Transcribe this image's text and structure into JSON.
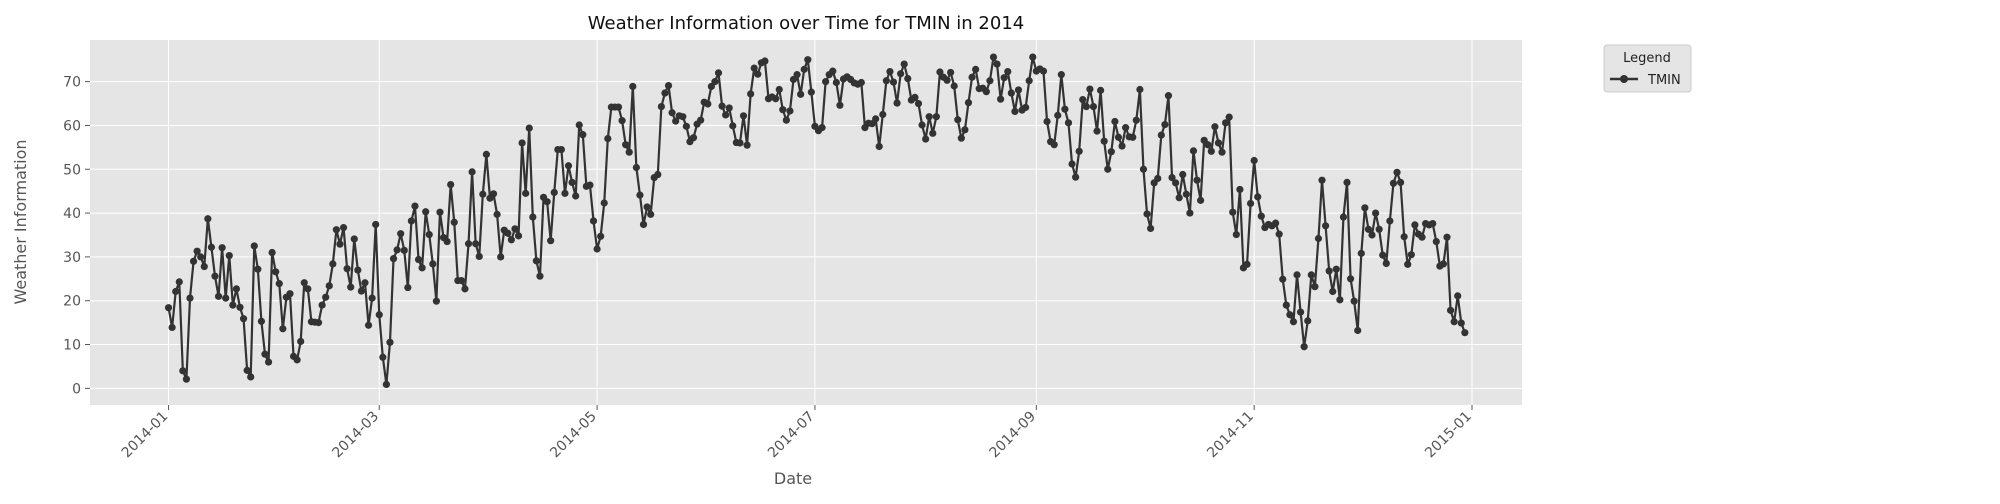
{
  "chart_data": {
    "type": "line",
    "title": "Weather Information over Time for TMIN in 2014",
    "xlabel": "Date",
    "ylabel": "Weather Information",
    "xlim": [
      "2013-12-10",
      "2015-01-15"
    ],
    "ylim": [
      -3.8,
      79.5
    ],
    "x_ticks": [
      "2014-01",
      "2014-03",
      "2014-05",
      "2014-07",
      "2014-09",
      "2014-11",
      "2015-01"
    ],
    "y_ticks": [
      0,
      10,
      20,
      30,
      40,
      50,
      60,
      70
    ],
    "grid": true,
    "legend": {
      "title": "Legend",
      "placement": "outside-top-right",
      "entries": [
        "TMIN"
      ]
    },
    "colors": {
      "background": "#e5e5e5",
      "line": "#333333",
      "grid": "#ffffff"
    },
    "start_date": "2014-01-01",
    "series": [
      {
        "name": "TMIN",
        "y": [
          18.4,
          13.9,
          22.1,
          24.3,
          4.0,
          2.1,
          20.6,
          29.0,
          31.3,
          30.0,
          27.8,
          38.7,
          32.2,
          25.6,
          21.0,
          32.1,
          20.6,
          30.3,
          19.0,
          22.7,
          18.5,
          15.9,
          4.1,
          2.6,
          32.5,
          27.2,
          15.3,
          7.8,
          6.0,
          31.0,
          26.6,
          23.9,
          13.6,
          20.8,
          21.6,
          7.3,
          6.5,
          10.7,
          24.1,
          22.7,
          15.2,
          15.1,
          15.0,
          19.0,
          20.8,
          23.4,
          28.4,
          36.2,
          32.9,
          36.7,
          27.3,
          23.1,
          34.1,
          27.0,
          22.2,
          24.1,
          14.4,
          20.6,
          37.4,
          16.8,
          7.1,
          0.9,
          10.5,
          29.6,
          31.6,
          35.3,
          31.5,
          23.0,
          38.2,
          41.6,
          29.4,
          27.5,
          40.3,
          35.1,
          28.4,
          19.9,
          40.2,
          34.4,
          33.5,
          46.5,
          37.9,
          24.6,
          24.6,
          22.7,
          33.0,
          49.4,
          33.0,
          30.1,
          44.3,
          53.4,
          43.4,
          44.4,
          39.7,
          30.0,
          36.1,
          35.4,
          33.9,
          36.4,
          34.8,
          56.0,
          44.5,
          59.4,
          39.1,
          29.1,
          25.6,
          43.6,
          42.6,
          33.7,
          44.7,
          54.5,
          54.5,
          44.5,
          50.8,
          47.0,
          43.9,
          60.1,
          57.9,
          46.1,
          46.4,
          38.2,
          31.8,
          34.7,
          42.3,
          57.0,
          64.2,
          64.2,
          64.2,
          61.1,
          55.6,
          53.9,
          68.9,
          50.4,
          44.1,
          37.4,
          41.4,
          39.7,
          48.1,
          48.8,
          64.3,
          67.4,
          69.1,
          62.9,
          61.0,
          62.2,
          62.0,
          59.8,
          56.3,
          57.2,
          60.3,
          61.2,
          65.3,
          64.9,
          68.9,
          70.0,
          72.0,
          64.4,
          62.4,
          64.0,
          59.9,
          56.1,
          56.0,
          62.2,
          55.5,
          67.2,
          73.1,
          71.7,
          74.3,
          74.7,
          66.1,
          66.5,
          66.1,
          68.2,
          63.6,
          61.2,
          63.3,
          70.5,
          71.6,
          67.1,
          72.8,
          75.0,
          67.6,
          59.8,
          58.8,
          59.5,
          70.0,
          71.6,
          72.4,
          69.8,
          64.6,
          70.6,
          71.1,
          70.5,
          69.7,
          69.4,
          69.8,
          59.5,
          60.5,
          60.4,
          61.5,
          55.2,
          62.5,
          70.2,
          72.3,
          69.9,
          65.1,
          71.8,
          74.0,
          70.7,
          65.8,
          66.4,
          65.0,
          60.1,
          56.9,
          62.0,
          58.2,
          62.0,
          72.2,
          71.0,
          70.3,
          72.1,
          69.0,
          61.3,
          57.1,
          59.0,
          65.2,
          71.0,
          72.8,
          68.4,
          68.5,
          67.7,
          70.2,
          75.6,
          74.0,
          66.0,
          70.9,
          72.3,
          67.4,
          63.2,
          68.1,
          63.5,
          64.1,
          70.2,
          75.6,
          72.4,
          72.9,
          72.4,
          60.9,
          56.3,
          55.6,
          62.3,
          71.6,
          63.7,
          60.6,
          51.2,
          48.2,
          54.1,
          65.9,
          64.3,
          68.3,
          64.3,
          58.7,
          68.0,
          56.4,
          50.0,
          54.0,
          60.9,
          57.3,
          55.3,
          59.5,
          57.4,
          57.3,
          61.2,
          68.2,
          50.0,
          39.8,
          36.5,
          46.9,
          47.9,
          57.8,
          60.2,
          66.8,
          48.1,
          46.9,
          43.5,
          48.8,
          44.3,
          40.0,
          54.2,
          47.5,
          42.9,
          56.6,
          55.6,
          54.1,
          59.7,
          56.0,
          53.9,
          60.6,
          61.9,
          40.2,
          35.1,
          45.4,
          27.5,
          28.3,
          42.2,
          52.0,
          43.7,
          39.3,
          36.7,
          37.4,
          37.1,
          37.7,
          35.2,
          24.9,
          19.0,
          16.8,
          15.2,
          25.9,
          17.4,
          9.5,
          15.4,
          25.9,
          23.2,
          34.2,
          47.5,
          37.1,
          26.8,
          22.1,
          27.2,
          20.2,
          39.1,
          47.0,
          25.0,
          19.9,
          13.2,
          30.8,
          41.2,
          36.3,
          35.0,
          40.0,
          36.3,
          30.4,
          28.5,
          38.2,
          46.8,
          49.3,
          47.0,
          34.6,
          28.3,
          30.5,
          37.3,
          35.2,
          34.5,
          37.6,
          37.3,
          37.6,
          33.5,
          27.9,
          28.4,
          34.5,
          17.8,
          15.2,
          21.1,
          14.9,
          12.7
        ]
      }
    ]
  }
}
